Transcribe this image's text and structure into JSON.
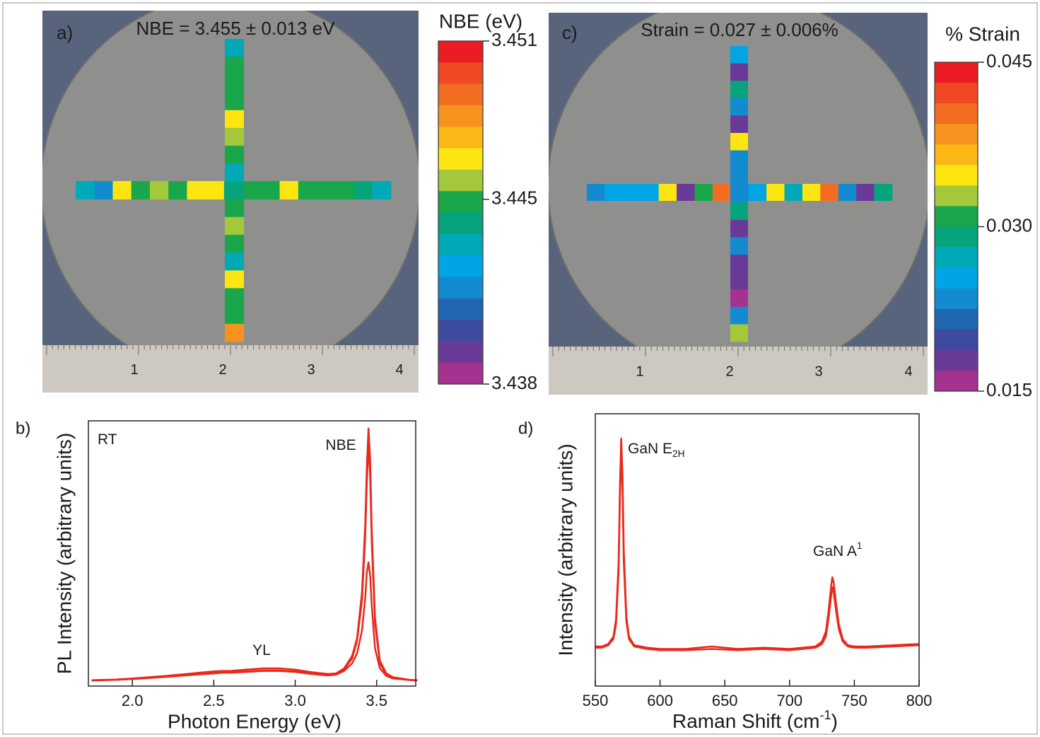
{
  "chart_data": [
    {
      "type": "wafer_map",
      "panel_label": "a)",
      "title": "NBE = 3.455 ± 0.013 eV",
      "colorbar_title": "NBE (eV)",
      "clim": [
        3.438,
        3.451
      ],
      "cticks": [
        3.451,
        3.445,
        3.438
      ],
      "colors": [
        "#ec1c24",
        "#ef4823",
        "#f26d21",
        "#f6931f",
        "#fbb716",
        "#fde512",
        "#a3c93a",
        "#1aa64a",
        "#05a47c",
        "#00a9b8",
        "#00a5e6",
        "#138bd1",
        "#2166b0",
        "#3e4a9e",
        "#6a3a98",
        "#a4338f"
      ],
      "horizontal": [
        3.4433,
        3.4417,
        3.4465,
        3.4449,
        3.4457,
        3.4449,
        3.4465,
        3.4465,
        3.4441,
        3.4449,
        3.4449,
        3.4465,
        3.4449,
        3.4449,
        3.4449,
        3.4441,
        3.4433
      ],
      "vertical": [
        3.4433,
        3.4449,
        3.4449,
        3.4449,
        3.4465,
        3.4457,
        3.4449,
        3.4433,
        3.4441,
        3.4449,
        3.4457,
        3.4449,
        3.4433,
        3.4465,
        3.4449,
        3.4449,
        3.4482
      ],
      "ruler_labels": [
        "1",
        "2",
        "3",
        "4"
      ]
    },
    {
      "type": "line",
      "panel_label": "b)",
      "xlabel": "Photon Energy (eV)",
      "ylabel": "PL Intensity (arbitrary units)",
      "xlim": [
        1.73,
        3.74
      ],
      "ylim": [
        -0.02,
        1.03
      ],
      "xticks": [
        {
          "value": 2,
          "label": "2.0"
        },
        2.5,
        {
          "value": 3,
          "label": "3.0"
        },
        3.5
      ],
      "x": [
        1.75,
        1.9,
        2.0,
        2.1,
        2.2,
        2.3,
        2.4,
        2.5,
        2.55,
        2.6,
        2.7,
        2.8,
        2.9,
        3.0,
        3.1,
        3.2,
        3.25,
        3.3,
        3.35,
        3.38,
        3.41,
        3.43,
        3.44,
        3.45,
        3.46,
        3.47,
        3.49,
        3.52,
        3.56,
        3.6,
        3.7,
        3.75
      ],
      "series": [
        {
          "color": "#e8291c",
          "values": [
            0.003,
            0.006,
            0.01,
            0.015,
            0.02,
            0.026,
            0.032,
            0.038,
            0.04,
            0.04,
            0.045,
            0.05,
            0.05,
            0.045,
            0.035,
            0.028,
            0.03,
            0.05,
            0.1,
            0.17,
            0.35,
            0.62,
            0.85,
            1.0,
            0.88,
            0.6,
            0.25,
            0.08,
            0.03,
            0.015,
            0.005,
            0.003
          ]
        },
        {
          "color": "#e8291c",
          "values": [
            0.003,
            0.005,
            0.008,
            0.012,
            0.017,
            0.022,
            0.027,
            0.032,
            0.035,
            0.034,
            0.038,
            0.042,
            0.042,
            0.038,
            0.03,
            0.024,
            0.027,
            0.045,
            0.09,
            0.16,
            0.32,
            0.57,
            0.79,
            0.93,
            0.82,
            0.55,
            0.23,
            0.07,
            0.025,
            0.012,
            0.004,
            0.003
          ]
        },
        {
          "color": "#e8291c",
          "values": [
            0.002,
            0.005,
            0.008,
            0.012,
            0.016,
            0.021,
            0.026,
            0.03,
            0.033,
            0.033,
            0.036,
            0.04,
            0.04,
            0.036,
            0.028,
            0.022,
            0.025,
            0.04,
            0.07,
            0.11,
            0.2,
            0.33,
            0.43,
            0.47,
            0.42,
            0.3,
            0.13,
            0.05,
            0.02,
            0.01,
            0.004,
            0.002
          ]
        }
      ],
      "annotations": [
        {
          "text": "RT"
        },
        {
          "text": "YL"
        },
        {
          "text": "NBE"
        }
      ]
    },
    {
      "type": "wafer_map",
      "panel_label": "c)",
      "title": "Strain = 0.027 ± 0.006%",
      "colorbar_title": "% Strain",
      "clim": [
        0.015,
        0.045
      ],
      "cticks": [
        0.045,
        {
          "value": 0.03,
          "label": "0.030"
        },
        0.015
      ],
      "colors": [
        "#ec1c24",
        "#ef4823",
        "#f26d21",
        "#f6931f",
        "#fbb716",
        "#fde512",
        "#a3c93a",
        "#1aa64a",
        "#05a47c",
        "#00a9b8",
        "#00a5e6",
        "#138bd1",
        "#2166b0",
        "#3e4a9e",
        "#6a3a98",
        "#a4338f"
      ],
      "horizontal": [
        0.0234,
        0.0253,
        0.0253,
        0.0253,
        0.0347,
        0.0178,
        0.0309,
        0.0403,
        0.0234,
        0.0253,
        0.0347,
        0.0272,
        0.0347,
        0.0403,
        0.0234,
        0.0178,
        0.0291
      ],
      "vertical": [
        0.0253,
        0.0178,
        0.0291,
        0.0234,
        0.0178,
        0.0347,
        0.0234,
        0.0234,
        0.0234,
        0.0291,
        0.0178,
        0.0234,
        0.0178,
        0.0178,
        0.0159,
        0.0234,
        0.0328
      ],
      "ruler_labels": [
        "1",
        "2",
        "3",
        "4"
      ]
    },
    {
      "type": "line",
      "panel_label": "d)",
      "xlabel": {
        "text": "Raman Shift (cm",
        "sup": "-1",
        "tail": ")"
      },
      "ylabel": "Intensity (arbitrary units)",
      "xlim": [
        550,
        800
      ],
      "ylim": [
        0,
        1.1
      ],
      "xticks": [
        550,
        600,
        650,
        700,
        750,
        800
      ],
      "x": [
        550,
        555,
        560,
        564,
        566,
        568,
        569,
        570,
        571,
        572,
        574,
        576,
        580,
        590,
        600,
        620,
        640,
        660,
        680,
        700,
        710,
        720,
        725,
        728,
        730,
        732,
        733,
        734,
        736,
        738,
        741,
        745,
        750,
        760,
        780,
        800
      ],
      "series": [
        {
          "color": "#e8291c",
          "values": [
            0.16,
            0.16,
            0.17,
            0.2,
            0.27,
            0.5,
            0.8,
            1.0,
            0.85,
            0.55,
            0.28,
            0.2,
            0.165,
            0.155,
            0.15,
            0.15,
            0.16,
            0.15,
            0.155,
            0.15,
            0.155,
            0.16,
            0.18,
            0.22,
            0.3,
            0.4,
            0.44,
            0.42,
            0.33,
            0.25,
            0.19,
            0.165,
            0.16,
            0.16,
            0.165,
            0.17
          ]
        },
        {
          "color": "#e8291c",
          "values": [
            0.155,
            0.155,
            0.165,
            0.19,
            0.25,
            0.46,
            0.75,
            0.95,
            0.8,
            0.5,
            0.26,
            0.19,
            0.16,
            0.15,
            0.145,
            0.145,
            0.15,
            0.145,
            0.15,
            0.145,
            0.15,
            0.155,
            0.17,
            0.2,
            0.27,
            0.36,
            0.4,
            0.38,
            0.3,
            0.23,
            0.18,
            0.16,
            0.155,
            0.155,
            0.16,
            0.165
          ]
        }
      ],
      "annotations": [
        {
          "text": "GaN E",
          "sub": "2H"
        },
        {
          "text": "GaN A",
          "sup": "1"
        }
      ]
    }
  ]
}
